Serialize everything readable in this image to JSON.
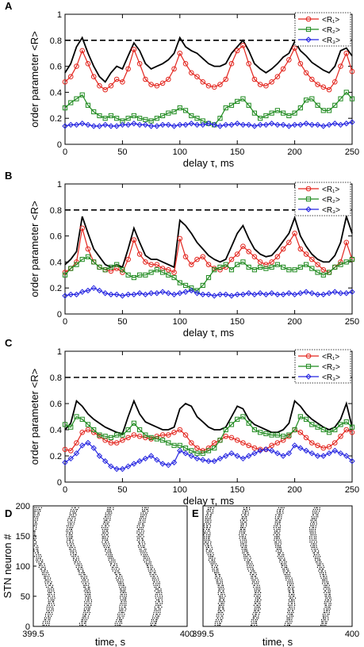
{
  "colors": {
    "R1": "#e3261f",
    "R2": "#1f8a1f",
    "R3": "#2424e0",
    "R": "#000000",
    "threshold": "#000000"
  },
  "legend_labels": [
    "<R₁>",
    "<R₂>",
    "<R₃>"
  ],
  "chart_data": [
    {
      "panel": "A",
      "type": "line",
      "xlabel": "delay τ, ms",
      "ylabel": "order parameter <R>",
      "xlim": [
        0,
        250
      ],
      "ylim": [
        0,
        1
      ],
      "xticks": [
        "0",
        "50",
        "100",
        "150",
        "200",
        "250"
      ],
      "yticks": [
        "0",
        "0.2",
        "0.4",
        "0.6",
        "0.8",
        "1"
      ],
      "threshold": 0.8,
      "legend_position": "top-right",
      "x": [
        0,
        5,
        10,
        15,
        20,
        25,
        30,
        35,
        40,
        45,
        50,
        55,
        60,
        65,
        70,
        75,
        80,
        85,
        90,
        95,
        100,
        105,
        110,
        115,
        120,
        125,
        130,
        135,
        140,
        145,
        150,
        155,
        160,
        165,
        170,
        175,
        180,
        185,
        190,
        195,
        200,
        205,
        210,
        215,
        220,
        225,
        230,
        235,
        240,
        245,
        250
      ],
      "series": [
        {
          "name": "<R>",
          "color_key": "R",
          "values": [
            0.55,
            0.62,
            0.75,
            0.82,
            0.7,
            0.6,
            0.52,
            0.48,
            0.55,
            0.6,
            0.58,
            0.68,
            0.78,
            0.72,
            0.62,
            0.58,
            0.6,
            0.62,
            0.65,
            0.7,
            0.82,
            0.75,
            0.72,
            0.7,
            0.66,
            0.62,
            0.6,
            0.6,
            0.62,
            0.7,
            0.75,
            0.8,
            0.72,
            0.62,
            0.58,
            0.55,
            0.58,
            0.62,
            0.67,
            0.7,
            0.79,
            0.72,
            0.68,
            0.63,
            0.6,
            0.57,
            0.55,
            0.6,
            0.72,
            0.74,
            0.68
          ]
        },
        {
          "name": "<R₁>",
          "color_key": "R1",
          "values": [
            0.48,
            0.52,
            0.6,
            0.72,
            0.62,
            0.52,
            0.45,
            0.42,
            0.45,
            0.5,
            0.48,
            0.58,
            0.73,
            0.62,
            0.5,
            0.46,
            0.45,
            0.47,
            0.5,
            0.58,
            0.7,
            0.62,
            0.55,
            0.52,
            0.48,
            0.45,
            0.44,
            0.46,
            0.5,
            0.62,
            0.72,
            0.76,
            0.62,
            0.5,
            0.46,
            0.45,
            0.48,
            0.52,
            0.58,
            0.65,
            0.74,
            0.62,
            0.55,
            0.5,
            0.46,
            0.44,
            0.42,
            0.48,
            0.6,
            0.7,
            0.56
          ]
        },
        {
          "name": "<R₂>",
          "color_key": "R2",
          "values": [
            0.28,
            0.32,
            0.35,
            0.38,
            0.3,
            0.25,
            0.22,
            0.2,
            0.22,
            0.2,
            0.18,
            0.2,
            0.22,
            0.2,
            0.19,
            0.18,
            0.2,
            0.22,
            0.24,
            0.25,
            0.28,
            0.26,
            0.22,
            0.2,
            0.18,
            0.16,
            0.15,
            0.2,
            0.28,
            0.3,
            0.33,
            0.35,
            0.3,
            0.24,
            0.2,
            0.22,
            0.24,
            0.26,
            0.24,
            0.22,
            0.24,
            0.28,
            0.34,
            0.35,
            0.3,
            0.26,
            0.26,
            0.3,
            0.35,
            0.4,
            0.35
          ]
        },
        {
          "name": "<R₃>",
          "color_key": "R3",
          "values": [
            0.14,
            0.15,
            0.15,
            0.16,
            0.15,
            0.14,
            0.14,
            0.15,
            0.14,
            0.14,
            0.15,
            0.15,
            0.16,
            0.15,
            0.15,
            0.14,
            0.14,
            0.15,
            0.15,
            0.14,
            0.15,
            0.15,
            0.16,
            0.15,
            0.15,
            0.16,
            0.15,
            0.14,
            0.15,
            0.15,
            0.16,
            0.15,
            0.15,
            0.14,
            0.15,
            0.15,
            0.16,
            0.15,
            0.15,
            0.14,
            0.15,
            0.15,
            0.16,
            0.15,
            0.15,
            0.14,
            0.15,
            0.16,
            0.15,
            0.16,
            0.17
          ]
        }
      ]
    },
    {
      "panel": "B",
      "type": "line",
      "xlabel": "delay τ, ms",
      "ylabel": "order parameter <R>",
      "xlim": [
        0,
        250
      ],
      "ylim": [
        0,
        1
      ],
      "xticks": [
        "0",
        "50",
        "100",
        "150",
        "200",
        "250"
      ],
      "yticks": [
        "0",
        "0.2",
        "0.4",
        "0.6",
        "0.8",
        "1"
      ],
      "threshold": 0.8,
      "legend_position": "top-right",
      "x": [
        0,
        5,
        10,
        15,
        20,
        25,
        30,
        35,
        40,
        45,
        50,
        55,
        60,
        65,
        70,
        75,
        80,
        85,
        90,
        95,
        100,
        105,
        110,
        115,
        120,
        125,
        130,
        135,
        140,
        145,
        150,
        155,
        160,
        165,
        170,
        175,
        180,
        185,
        190,
        195,
        200,
        205,
        210,
        215,
        220,
        225,
        230,
        235,
        240,
        245,
        250
      ],
      "series": [
        {
          "name": "<R>",
          "color_key": "R",
          "values": [
            0.38,
            0.42,
            0.48,
            0.75,
            0.62,
            0.5,
            0.44,
            0.38,
            0.36,
            0.38,
            0.36,
            0.5,
            0.66,
            0.55,
            0.45,
            0.42,
            0.42,
            0.4,
            0.38,
            0.36,
            0.72,
            0.68,
            0.62,
            0.55,
            0.5,
            0.45,
            0.42,
            0.4,
            0.42,
            0.52,
            0.62,
            0.68,
            0.58,
            0.5,
            0.46,
            0.44,
            0.45,
            0.5,
            0.56,
            0.62,
            0.74,
            0.6,
            0.52,
            0.46,
            0.42,
            0.4,
            0.4,
            0.45,
            0.55,
            0.75,
            0.62
          ]
        },
        {
          "name": "<R₁>",
          "color_key": "R1",
          "values": [
            0.32,
            0.35,
            0.4,
            0.66,
            0.5,
            0.4,
            0.36,
            0.34,
            0.33,
            0.35,
            0.32,
            0.42,
            0.57,
            0.46,
            0.4,
            0.38,
            0.38,
            0.35,
            0.34,
            0.32,
            0.58,
            0.44,
            0.38,
            0.42,
            0.44,
            0.38,
            0.35,
            0.34,
            0.36,
            0.42,
            0.46,
            0.52,
            0.48,
            0.44,
            0.4,
            0.38,
            0.4,
            0.44,
            0.5,
            0.55,
            0.62,
            0.5,
            0.46,
            0.42,
            0.38,
            0.34,
            0.32,
            0.36,
            0.4,
            0.55,
            0.42
          ]
        },
        {
          "name": "<R₂>",
          "color_key": "R2",
          "values": [
            0.3,
            0.35,
            0.38,
            0.42,
            0.44,
            0.4,
            0.36,
            0.34,
            0.36,
            0.38,
            0.34,
            0.3,
            0.28,
            0.3,
            0.3,
            0.32,
            0.34,
            0.32,
            0.3,
            0.28,
            0.24,
            0.22,
            0.2,
            0.18,
            0.22,
            0.28,
            0.34,
            0.36,
            0.38,
            0.34,
            0.38,
            0.4,
            0.36,
            0.34,
            0.36,
            0.35,
            0.36,
            0.38,
            0.36,
            0.34,
            0.34,
            0.36,
            0.38,
            0.35,
            0.32,
            0.3,
            0.32,
            0.36,
            0.38,
            0.4,
            0.42
          ]
        },
        {
          "name": "<R₃>",
          "color_key": "R3",
          "values": [
            0.14,
            0.15,
            0.15,
            0.17,
            0.18,
            0.2,
            0.18,
            0.16,
            0.15,
            0.15,
            0.14,
            0.15,
            0.15,
            0.16,
            0.15,
            0.16,
            0.16,
            0.17,
            0.16,
            0.15,
            0.16,
            0.17,
            0.18,
            0.16,
            0.15,
            0.15,
            0.14,
            0.15,
            0.15,
            0.14,
            0.15,
            0.15,
            0.16,
            0.15,
            0.16,
            0.15,
            0.16,
            0.15,
            0.15,
            0.16,
            0.15,
            0.16,
            0.17,
            0.16,
            0.15,
            0.15,
            0.16,
            0.17,
            0.16,
            0.16,
            0.17
          ]
        }
      ]
    },
    {
      "panel": "C",
      "type": "line",
      "xlabel": "delay τ, ms",
      "ylabel": "order parameter <R>",
      "xlim": [
        0,
        250
      ],
      "ylim": [
        0,
        1
      ],
      "xticks": [
        "0",
        "50",
        "100",
        "150",
        "200",
        "250"
      ],
      "yticks": [
        "0",
        "0.2",
        "0.4",
        "0.6",
        "0.8",
        "1"
      ],
      "threshold": 0.8,
      "legend_position": "top-right",
      "x": [
        0,
        5,
        10,
        15,
        20,
        25,
        30,
        35,
        40,
        45,
        50,
        55,
        60,
        65,
        70,
        75,
        80,
        85,
        90,
        95,
        100,
        105,
        110,
        115,
        120,
        125,
        130,
        135,
        140,
        145,
        150,
        155,
        160,
        165,
        170,
        175,
        180,
        185,
        190,
        195,
        200,
        205,
        210,
        215,
        220,
        225,
        230,
        235,
        240,
        245,
        250
      ],
      "series": [
        {
          "name": "<R>",
          "color_key": "R",
          "values": [
            0.4,
            0.45,
            0.62,
            0.58,
            0.52,
            0.48,
            0.45,
            0.42,
            0.4,
            0.38,
            0.37,
            0.5,
            0.62,
            0.52,
            0.46,
            0.44,
            0.42,
            0.4,
            0.4,
            0.42,
            0.56,
            0.6,
            0.58,
            0.5,
            0.46,
            0.42,
            0.4,
            0.4,
            0.42,
            0.5,
            0.58,
            0.56,
            0.48,
            0.44,
            0.42,
            0.4,
            0.38,
            0.38,
            0.4,
            0.45,
            0.62,
            0.58,
            0.52,
            0.48,
            0.45,
            0.42,
            0.4,
            0.42,
            0.48,
            0.6,
            0.42
          ]
        },
        {
          "name": "<R₁>",
          "color_key": "R1",
          "values": [
            0.25,
            0.24,
            0.3,
            0.38,
            0.4,
            0.38,
            0.35,
            0.32,
            0.3,
            0.3,
            0.32,
            0.34,
            0.36,
            0.35,
            0.34,
            0.33,
            0.35,
            0.36,
            0.36,
            0.38,
            0.4,
            0.36,
            0.3,
            0.26,
            0.24,
            0.26,
            0.3,
            0.32,
            0.35,
            0.34,
            0.32,
            0.3,
            0.28,
            0.26,
            0.25,
            0.25,
            0.28,
            0.3,
            0.32,
            0.35,
            0.4,
            0.38,
            0.34,
            0.3,
            0.28,
            0.26,
            0.27,
            0.3,
            0.35,
            0.4,
            0.38
          ]
        },
        {
          "name": "<R₂>",
          "color_key": "R2",
          "values": [
            0.44,
            0.42,
            0.5,
            0.48,
            0.44,
            0.4,
            0.36,
            0.35,
            0.34,
            0.36,
            0.36,
            0.4,
            0.45,
            0.4,
            0.36,
            0.34,
            0.33,
            0.32,
            0.3,
            0.28,
            0.28,
            0.26,
            0.24,
            0.22,
            0.22,
            0.24,
            0.26,
            0.32,
            0.4,
            0.44,
            0.48,
            0.5,
            0.45,
            0.4,
            0.38,
            0.37,
            0.36,
            0.36,
            0.35,
            0.36,
            0.4,
            0.5,
            0.48,
            0.44,
            0.42,
            0.4,
            0.38,
            0.4,
            0.44,
            0.46,
            0.42
          ]
        },
        {
          "name": "<R₃>",
          "color_key": "R3",
          "values": [
            0.15,
            0.18,
            0.22,
            0.28,
            0.3,
            0.26,
            0.2,
            0.16,
            0.12,
            0.1,
            0.1,
            0.12,
            0.14,
            0.16,
            0.18,
            0.2,
            0.17,
            0.14,
            0.13,
            0.15,
            0.24,
            0.22,
            0.2,
            0.18,
            0.17,
            0.16,
            0.16,
            0.18,
            0.2,
            0.22,
            0.2,
            0.18,
            0.2,
            0.22,
            0.24,
            0.25,
            0.24,
            0.22,
            0.2,
            0.22,
            0.28,
            0.26,
            0.24,
            0.22,
            0.2,
            0.2,
            0.22,
            0.24,
            0.22,
            0.2,
            0.16
          ]
        }
      ]
    },
    {
      "panel": "D",
      "type": "scatter",
      "xlabel": "time, s",
      "ylabel": "STN neuron #",
      "xlim": [
        399.5,
        400
      ],
      "ylim": [
        0,
        200
      ],
      "xticks": [
        "399.5",
        "400"
      ],
      "yticks": [
        "0",
        "50",
        "100",
        "150",
        "200"
      ],
      "burst_count": 4,
      "phase_offsets": [
        0.03,
        0.27,
        0.5,
        0.73
      ],
      "wave_amplitude": 0.05
    },
    {
      "panel": "E",
      "type": "scatter",
      "xlabel": "time, s",
      "ylabel": "",
      "xlim": [
        399.5,
        400
      ],
      "ylim": [
        0,
        200
      ],
      "xticks": [
        "399.5",
        "400"
      ],
      "yticks": [],
      "burst_count": 4,
      "phase_offsets": [
        0.05,
        0.29,
        0.52,
        0.76
      ],
      "wave_amplitude": 0.04
    }
  ]
}
